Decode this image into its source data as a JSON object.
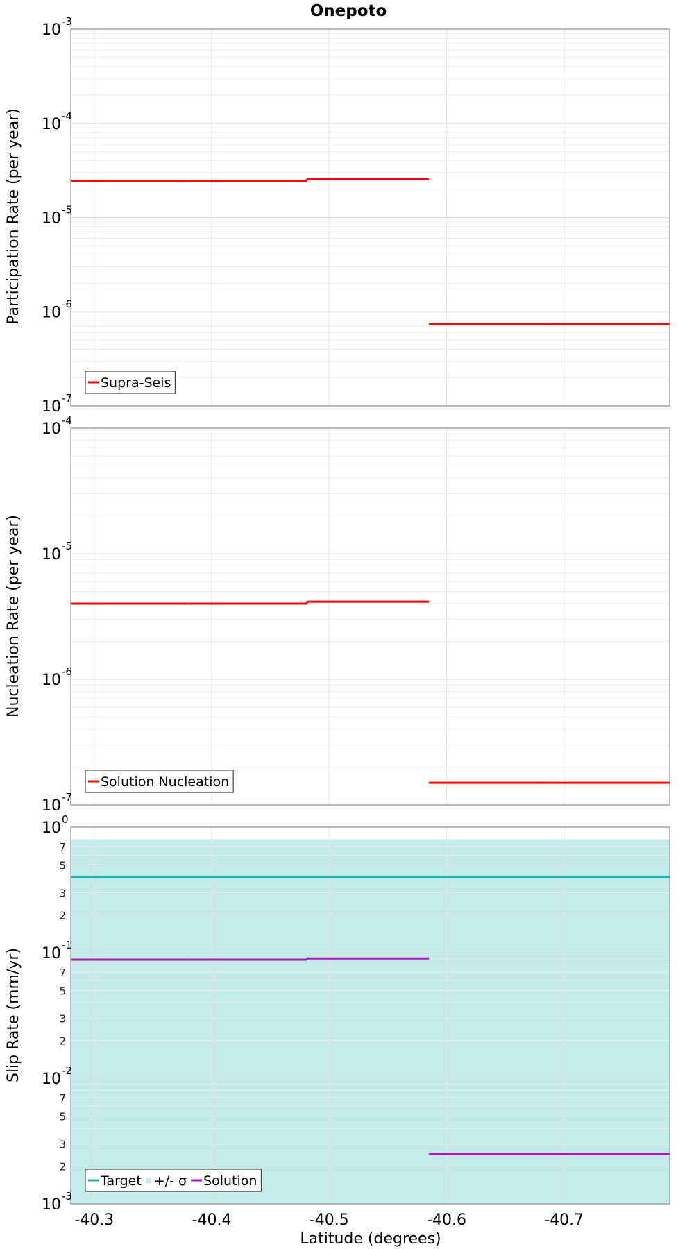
{
  "chart_data": [
    {
      "type": "line",
      "title": "Onepoto",
      "ylabel": "Participation Rate (per year)",
      "xlabel": "",
      "y_scale": "log",
      "ylim": [
        1e-07,
        0.001
      ],
      "xlim": [
        -40.28,
        -40.79
      ],
      "y_ticks": [
        {
          "base": "10",
          "exp": "-7",
          "value": 1e-07
        },
        {
          "base": "10",
          "exp": "-6",
          "value": 1e-06
        },
        {
          "base": "10",
          "exp": "-5",
          "value": 1e-05
        },
        {
          "base": "10",
          "exp": "-4",
          "value": 0.0001
        },
        {
          "base": "10",
          "exp": "-3",
          "value": 0.001
        }
      ],
      "grid": true,
      "legend_position": "bottom-left",
      "series": [
        {
          "name": "Supra-Seis",
          "color": "#ff0000",
          "style": "step",
          "segments": [
            {
              "x0": -40.28,
              "x1": -40.38,
              "y": 2.45e-05
            },
            {
              "x0": -40.38,
              "x1": -40.481,
              "y": 2.45e-05
            },
            {
              "x0": -40.481,
              "x1": -40.585,
              "y": 2.55e-05
            },
            {
              "x0": -40.585,
              "x1": -40.69,
              "y": 7.4e-07
            },
            {
              "x0": -40.69,
              "x1": -40.79,
              "y": 7.4e-07
            }
          ]
        }
      ]
    },
    {
      "type": "line",
      "title": "",
      "ylabel": "Nucleation Rate (per year)",
      "xlabel": "",
      "y_scale": "log",
      "ylim": [
        1e-07,
        0.0001
      ],
      "xlim": [
        -40.28,
        -40.79
      ],
      "y_ticks": [
        {
          "base": "10",
          "exp": "-7",
          "value": 1e-07
        },
        {
          "base": "10",
          "exp": "-6",
          "value": 1e-06
        },
        {
          "base": "10",
          "exp": "-5",
          "value": 1e-05
        },
        {
          "base": "10",
          "exp": "-4",
          "value": 0.0001
        }
      ],
      "grid": true,
      "legend_position": "bottom-left",
      "series": [
        {
          "name": "Solution Nucleation",
          "color": "#ff0000",
          "style": "step",
          "segments": [
            {
              "x0": -40.28,
              "x1": -40.38,
              "y": 4e-06
            },
            {
              "x0": -40.38,
              "x1": -40.481,
              "y": 4e-06
            },
            {
              "x0": -40.481,
              "x1": -40.585,
              "y": 4.15e-06
            },
            {
              "x0": -40.585,
              "x1": -40.69,
              "y": 1.5e-07
            },
            {
              "x0": -40.69,
              "x1": -40.79,
              "y": 1.5e-07
            }
          ]
        }
      ]
    },
    {
      "type": "line",
      "title": "",
      "ylabel": "Slip Rate (mm/yr)",
      "xlabel": "Latitude (degrees)",
      "y_scale": "log",
      "ylim": [
        0.001,
        1
      ],
      "xlim": [
        -40.28,
        -40.79
      ],
      "x_ticks": [
        {
          "label": "-40.3",
          "value": -40.3
        },
        {
          "label": "-40.4",
          "value": -40.4
        },
        {
          "label": "-40.5",
          "value": -40.5
        },
        {
          "label": "-40.6",
          "value": -40.6
        },
        {
          "label": "-40.7",
          "value": -40.7
        }
      ],
      "y_ticks": [
        {
          "base": "10",
          "exp": "-3",
          "value": 0.001
        },
        {
          "base": "10",
          "exp": "-2",
          "value": 0.01
        },
        {
          "base": "10",
          "exp": "-1",
          "value": 0.1
        },
        {
          "base": "10",
          "exp": "0",
          "value": 1
        }
      ],
      "y_minor_labels": [
        {
          "label": "2",
          "value": 0.002
        },
        {
          "label": "3",
          "value": 0.003
        },
        {
          "label": "5",
          "value": 0.005
        },
        {
          "label": "7",
          "value": 0.007
        },
        {
          "label": "2",
          "value": 0.02
        },
        {
          "label": "3",
          "value": 0.03
        },
        {
          "label": "5",
          "value": 0.05
        },
        {
          "label": "7",
          "value": 0.07
        },
        {
          "label": "2",
          "value": 0.2
        },
        {
          "label": "3",
          "value": 0.3
        },
        {
          "label": "5",
          "value": 0.5
        },
        {
          "label": "7",
          "value": 0.7
        }
      ],
      "grid": true,
      "legend_position": "bottom-left",
      "band": {
        "name": "+/- σ",
        "color": "#c2ebea",
        "y_low": 0.001,
        "y_high": 0.8
      },
      "series": [
        {
          "name": "Target",
          "color": "#12b3b0",
          "style": "step",
          "segments": [
            {
              "x0": -40.28,
              "x1": -40.79,
              "y": 0.4
            }
          ]
        },
        {
          "name": "Solution",
          "color": "#b012b8",
          "style": "step",
          "segments": [
            {
              "x0": -40.28,
              "x1": -40.38,
              "y": 0.088
            },
            {
              "x0": -40.38,
              "x1": -40.481,
              "y": 0.088
            },
            {
              "x0": -40.481,
              "x1": -40.585,
              "y": 0.09
            },
            {
              "x0": -40.585,
              "x1": -40.69,
              "y": 0.0025
            },
            {
              "x0": -40.69,
              "x1": -40.79,
              "y": 0.0025
            }
          ]
        }
      ]
    }
  ]
}
